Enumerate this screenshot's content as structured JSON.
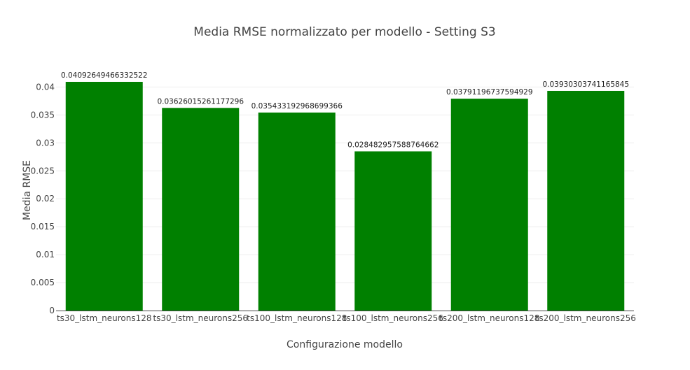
{
  "chart_data": {
    "type": "bar",
    "title": "Media RMSE normalizzato per modello - Setting S3",
    "xlabel": "Configurazione modello",
    "ylabel": "Media RMSE",
    "categories": [
      "ts30_lstm_neurons128",
      "ts30_lstm_neurons256",
      "ts100_lstm_neurons128",
      "ts100_lstm_neurons256",
      "ts200_lstm_neurons128",
      "ts200_lstm_neurons256"
    ],
    "values": [
      0.04092649466332522,
      0.03626015261177296,
      0.035433192968699366,
      0.028482957588764662,
      0.03791196737594929,
      0.03930303741165845
    ],
    "data_labels": [
      "0.04092649466332522",
      "0.03626015261177296",
      "0.035433192968699366",
      "0.028482957588764662",
      "0.03791196737594929",
      "0.03930303741165845"
    ],
    "ylim": [
      0,
      0.04092649466332522
    ],
    "yticks": [
      0,
      0.005,
      0.01,
      0.015,
      0.02,
      0.025,
      0.03,
      0.035,
      0.04
    ],
    "ytick_labels": [
      "0",
      "0.005",
      "0.01",
      "0.015",
      "0.02",
      "0.025",
      "0.03",
      "0.035",
      "0.04"
    ],
    "bar_color": "#008000",
    "grid": true,
    "legend": false
  }
}
